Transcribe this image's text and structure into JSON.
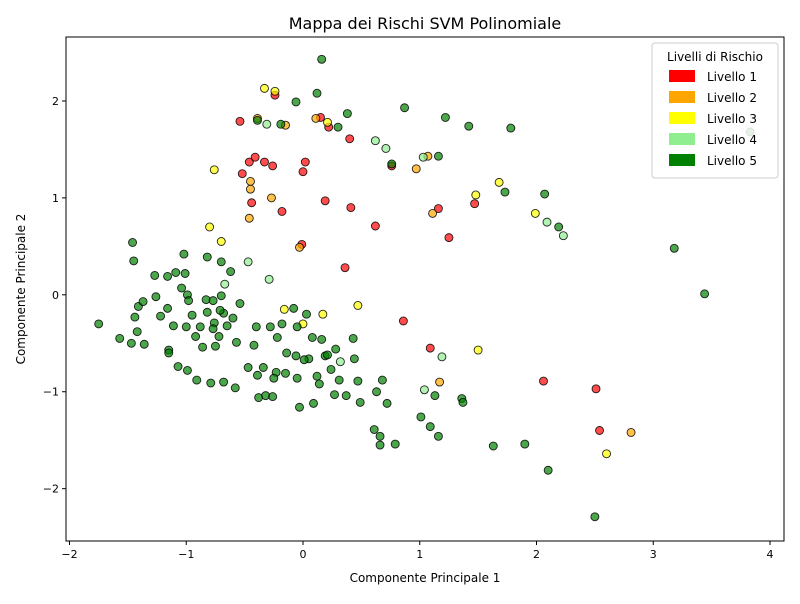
{
  "chart_data": {
    "type": "scatter",
    "title": "Mappa dei Rischi SVM Polinomiale",
    "xlabel": "Componente Principale 1",
    "ylabel": "Componente Principale 2",
    "xlim": [
      -2.03,
      4.12
    ],
    "ylim": [
      -2.54,
      2.66
    ],
    "xticks": [
      -2,
      -1,
      0,
      1,
      2,
      3,
      4
    ],
    "yticks": [
      -2,
      -1,
      0,
      1,
      2
    ],
    "grid": false,
    "legend": {
      "title": "Livelli di Rischio",
      "placement": "top-right",
      "entries": [
        {
          "label": "Livello 1",
          "color": "#ff0000"
        },
        {
          "label": "Livello 2",
          "color": "#ffa500"
        },
        {
          "label": "Livello 3",
          "color": "#ffff00"
        },
        {
          "label": "Livello 4",
          "color": "#90ee90"
        },
        {
          "label": "Livello 5",
          "color": "#008000"
        }
      ]
    },
    "series": [
      {
        "name": "Livello 1",
        "color": "#ff0000",
        "points": [
          [
            -0.54,
            1.79
          ],
          [
            0.15,
            1.83
          ],
          [
            0.22,
            1.73
          ],
          [
            0.4,
            1.61
          ],
          [
            -0.24,
            2.06
          ],
          [
            -0.46,
            1.37
          ],
          [
            -0.33,
            1.37
          ],
          [
            -0.41,
            1.42
          ],
          [
            -0.26,
            1.33
          ],
          [
            0.02,
            1.37
          ],
          [
            -0.52,
            1.25
          ],
          [
            0.0,
            1.27
          ],
          [
            0.19,
            0.97
          ],
          [
            0.41,
            0.9
          ],
          [
            -0.44,
            0.95
          ],
          [
            -0.18,
            0.86
          ],
          [
            -0.01,
            0.52
          ],
          [
            0.62,
            0.71
          ],
          [
            1.16,
            0.89
          ],
          [
            1.47,
            0.94
          ],
          [
            1.25,
            0.59
          ],
          [
            0.36,
            0.28
          ],
          [
            0.86,
            -0.27
          ],
          [
            1.09,
            -0.55
          ],
          [
            2.06,
            -0.89
          ],
          [
            2.51,
            -0.97
          ],
          [
            2.54,
            -1.4
          ],
          [
            0.76,
            1.33
          ]
        ]
      },
      {
        "name": "Livello 2",
        "color": "#ffa500",
        "points": [
          [
            -0.39,
            1.82
          ],
          [
            -0.15,
            1.75
          ],
          [
            0.11,
            1.82
          ],
          [
            -0.45,
            1.17
          ],
          [
            -0.45,
            1.09
          ],
          [
            -0.27,
            1.0
          ],
          [
            -0.46,
            0.79
          ],
          [
            -0.03,
            0.49
          ],
          [
            0.97,
            1.3
          ],
          [
            1.07,
            1.43
          ],
          [
            1.11,
            0.84
          ],
          [
            1.17,
            -0.9
          ],
          [
            2.81,
            -1.42
          ]
        ]
      },
      {
        "name": "Livello 3",
        "color": "#ffff00",
        "points": [
          [
            -0.33,
            2.13
          ],
          [
            -0.24,
            2.1
          ],
          [
            0.21,
            1.78
          ],
          [
            -0.76,
            1.29
          ],
          [
            -0.8,
            0.7
          ],
          [
            -0.7,
            0.55
          ],
          [
            -0.16,
            -0.15
          ],
          [
            0.17,
            -0.2
          ],
          [
            0.0,
            -0.3
          ],
          [
            0.47,
            -0.11
          ],
          [
            1.48,
            1.03
          ],
          [
            1.68,
            1.16
          ],
          [
            1.99,
            0.84
          ],
          [
            1.5,
            -0.57
          ],
          [
            2.6,
            -1.64
          ]
        ]
      },
      {
        "name": "Livello 4",
        "color": "#90ee90",
        "points": [
          [
            -0.31,
            1.76
          ],
          [
            0.62,
            1.59
          ],
          [
            0.71,
            1.51
          ],
          [
            1.03,
            1.42
          ],
          [
            -0.47,
            0.34
          ],
          [
            -0.67,
            0.11
          ],
          [
            -0.29,
            0.16
          ],
          [
            2.09,
            0.75
          ],
          [
            2.23,
            0.61
          ],
          [
            1.19,
            -0.64
          ],
          [
            0.32,
            -0.69
          ],
          [
            1.04,
            -0.98
          ]
        ]
      },
      {
        "name": "Livello 5",
        "color": "#008000",
        "points": [
          [
            0.16,
            2.43
          ],
          [
            0.12,
            2.08
          ],
          [
            -0.06,
            1.99
          ],
          [
            0.87,
            1.93
          ],
          [
            -0.39,
            1.8
          ],
          [
            -0.19,
            1.76
          ],
          [
            0.38,
            1.87
          ],
          [
            0.3,
            1.73
          ],
          [
            1.22,
            1.83
          ],
          [
            1.42,
            1.74
          ],
          [
            1.78,
            1.72
          ],
          [
            1.16,
            1.43
          ],
          [
            0.76,
            1.35
          ],
          [
            1.73,
            1.06
          ],
          [
            2.07,
            1.04
          ],
          [
            2.19,
            0.7
          ],
          [
            3.83,
            1.68
          ],
          [
            3.18,
            0.48
          ],
          [
            3.44,
            0.01
          ],
          [
            -1.46,
            0.54
          ],
          [
            -1.45,
            0.35
          ],
          [
            -1.02,
            0.42
          ],
          [
            -1.27,
            0.2
          ],
          [
            -1.16,
            0.19
          ],
          [
            -1.09,
            0.23
          ],
          [
            -1.01,
            0.22
          ],
          [
            -0.82,
            0.39
          ],
          [
            -0.7,
            0.34
          ],
          [
            -0.62,
            0.24
          ],
          [
            -1.04,
            0.07
          ],
          [
            -0.99,
            0.0
          ],
          [
            -0.98,
            -0.06
          ],
          [
            -0.83,
            -0.05
          ],
          [
            -0.77,
            -0.06
          ],
          [
            -0.7,
            -0.01
          ],
          [
            -0.54,
            -0.09
          ],
          [
            -1.75,
            -0.3
          ],
          [
            -1.57,
            -0.45
          ],
          [
            -1.41,
            -0.12
          ],
          [
            -1.37,
            -0.07
          ],
          [
            -1.44,
            -0.23
          ],
          [
            -1.26,
            -0.02
          ],
          [
            -1.22,
            -0.22
          ],
          [
            -1.16,
            -0.14
          ],
          [
            -1.11,
            -0.32
          ],
          [
            -1.07,
            -0.74
          ],
          [
            -1.42,
            -0.38
          ],
          [
            -1.36,
            -0.51
          ],
          [
            -1.47,
            -0.5
          ],
          [
            -1.15,
            -0.57
          ],
          [
            -1.0,
            -0.33
          ],
          [
            -0.95,
            -0.21
          ],
          [
            -0.92,
            -0.43
          ],
          [
            -0.88,
            -0.33
          ],
          [
            -0.82,
            -0.18
          ],
          [
            -0.76,
            -0.29
          ],
          [
            -0.72,
            -0.43
          ],
          [
            -0.68,
            -0.19
          ],
          [
            -0.65,
            -0.32
          ],
          [
            -0.6,
            -0.24
          ],
          [
            -0.57,
            -0.49
          ],
          [
            -0.86,
            -0.54
          ],
          [
            -0.75,
            -0.53
          ],
          [
            -0.79,
            -0.91
          ],
          [
            -0.68,
            -0.9
          ],
          [
            -0.58,
            -0.96
          ],
          [
            -0.99,
            -0.78
          ],
          [
            -0.91,
            -0.88
          ],
          [
            -0.47,
            -0.75
          ],
          [
            -0.42,
            -0.52
          ],
          [
            -0.4,
            -0.33
          ],
          [
            -0.39,
            -0.83
          ],
          [
            -0.34,
            -0.75
          ],
          [
            -0.28,
            -0.33
          ],
          [
            -0.22,
            -0.44
          ],
          [
            -0.23,
            -0.8
          ],
          [
            -0.18,
            -0.3
          ],
          [
            -0.15,
            -0.81
          ],
          [
            -0.14,
            -0.6
          ],
          [
            -0.08,
            -0.14
          ],
          [
            -0.05,
            -0.33
          ],
          [
            -0.06,
            -0.63
          ],
          [
            -0.05,
            -0.86
          ],
          [
            -0.03,
            -1.16
          ],
          [
            0.03,
            -0.2
          ],
          [
            0.05,
            -0.66
          ],
          [
            0.08,
            -0.44
          ],
          [
            0.12,
            -0.84
          ],
          [
            0.14,
            -0.92
          ],
          [
            0.16,
            -0.46
          ],
          [
            0.19,
            -0.63
          ],
          [
            0.24,
            -0.77
          ],
          [
            0.28,
            -0.56
          ],
          [
            0.31,
            -0.88
          ],
          [
            0.37,
            -1.04
          ],
          [
            0.43,
            -0.45
          ],
          [
            0.44,
            -0.66
          ],
          [
            0.47,
            -0.89
          ],
          [
            0.49,
            -1.11
          ],
          [
            0.61,
            -1.39
          ],
          [
            0.63,
            -1.0
          ],
          [
            0.66,
            -1.46
          ],
          [
            0.66,
            -1.55
          ],
          [
            0.68,
            -0.88
          ],
          [
            0.72,
            -1.12
          ],
          [
            0.79,
            -1.54
          ],
          [
            1.01,
            -1.26
          ],
          [
            1.09,
            -1.36
          ],
          [
            1.13,
            -1.04
          ],
          [
            1.16,
            -1.46
          ],
          [
            1.36,
            -1.07
          ],
          [
            1.37,
            -1.11
          ],
          [
            1.63,
            -1.56
          ],
          [
            1.9,
            -1.54
          ],
          [
            2.1,
            -1.81
          ],
          [
            2.5,
            -2.29
          ],
          [
            -0.38,
            -1.06
          ],
          [
            -0.32,
            -1.04
          ],
          [
            -0.26,
            -1.05
          ],
          [
            -0.25,
            -0.86
          ],
          [
            0.01,
            -0.67
          ],
          [
            0.09,
            -1.12
          ],
          [
            -1.15,
            -0.6
          ],
          [
            -0.71,
            -0.16
          ],
          [
            -0.77,
            -0.35
          ],
          [
            0.21,
            -0.62
          ],
          [
            0.27,
            -1.03
          ]
        ]
      }
    ]
  }
}
